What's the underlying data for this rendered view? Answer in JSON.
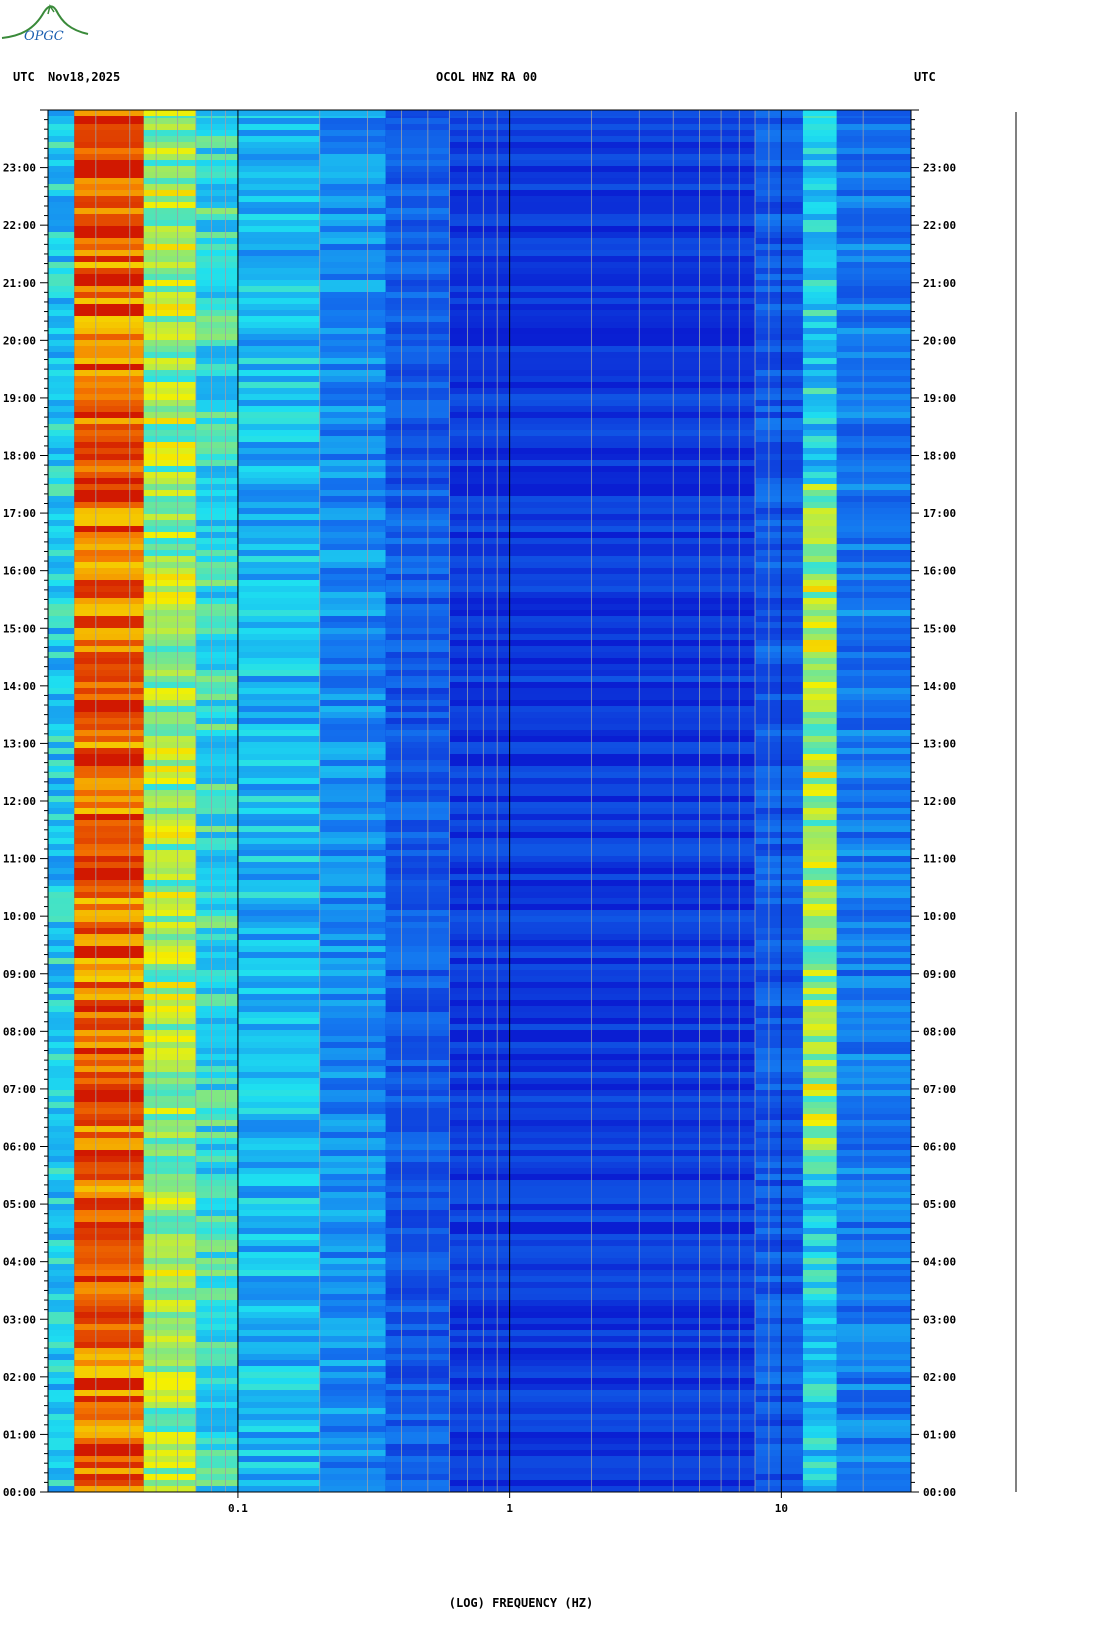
{
  "header": {
    "left_utc": "UTC",
    "date": "Nov18,2025",
    "station": "OCOL HNZ RA 00",
    "right_utc": "UTC"
  },
  "logo_text": "OPGC",
  "colors": {
    "low": "#0a1ed2",
    "mid": "#1ee0f0",
    "high": "#f5f000",
    "peak": "#c80000",
    "frame": "#000000"
  },
  "chart_data": {
    "type": "heatmap",
    "title": "OCOL HNZ RA 00",
    "xlabel": "(LOG) FREQUENCY (HZ)",
    "x_scale": "log",
    "xlim": [
      0.02,
      30
    ],
    "x_ticks": [
      {
        "value": 0.1,
        "label": "0.1"
      },
      {
        "value": 1,
        "label": "1"
      },
      {
        "value": 10,
        "label": "10"
      }
    ],
    "ylim": [
      "00:00",
      "24:00"
    ],
    "y_ticks": [
      "00:00",
      "01:00",
      "02:00",
      "03:00",
      "04:00",
      "05:00",
      "06:00",
      "07:00",
      "08:00",
      "09:00",
      "10:00",
      "11:00",
      "12:00",
      "13:00",
      "14:00",
      "15:00",
      "16:00",
      "17:00",
      "18:00",
      "19:00",
      "20:00",
      "21:00",
      "22:00",
      "23:00"
    ],
    "bands": [
      {
        "f_min": 0.02,
        "f_max": 0.025,
        "level": 0.45
      },
      {
        "f_min": 0.025,
        "f_max": 0.045,
        "level": 0.85
      },
      {
        "f_min": 0.045,
        "f_max": 0.07,
        "level": 0.62
      },
      {
        "f_min": 0.07,
        "f_max": 0.1,
        "level": 0.5
      },
      {
        "f_min": 0.1,
        "f_max": 0.2,
        "level": 0.42
      },
      {
        "f_min": 0.2,
        "f_max": 0.35,
        "level": 0.33
      },
      {
        "f_min": 0.35,
        "f_max": 0.6,
        "level": 0.2
      },
      {
        "f_min": 0.6,
        "f_max": 8,
        "level": 0.08
      },
      {
        "f_min": 8,
        "f_max": 12,
        "level": 0.2
      },
      {
        "f_min": 12,
        "f_max": 16,
        "level": 0.45
      },
      {
        "f_min": 16,
        "f_max": 30,
        "level": 0.28
      }
    ],
    "peak_rows": [
      "00:40",
      "01:50",
      "03:40",
      "05:50",
      "06:50",
      "07:35",
      "08:20",
      "09:20",
      "10:40",
      "11:40",
      "12:40",
      "13:35",
      "16:40",
      "17:15",
      "17:30",
      "18:40",
      "19:30",
      "20:30",
      "20:25",
      "21:00",
      "21:50",
      "22:50",
      "23:00",
      "23:50"
    ]
  }
}
